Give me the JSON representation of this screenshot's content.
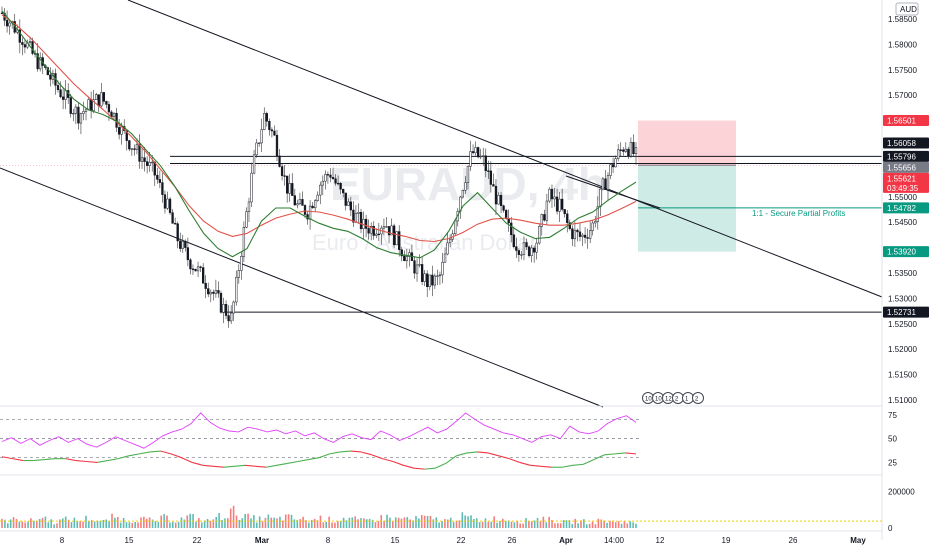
{
  "chart_data": {
    "type": "candlestick",
    "symbol_watermark": "EURAUD, 4h",
    "watermark_subtitle": "Euro / Australian Dollar",
    "currency": "AUD",
    "price_axis": {
      "ylim": [
        1.5075,
        1.5895
      ],
      "ticks": [
        "1.58500",
        "1.58000",
        "1.57500",
        "1.57000",
        "1.55000",
        "1.54500",
        "1.53500",
        "1.53000",
        "1.52500",
        "1.52000",
        "1.51500",
        "1.51000"
      ]
    },
    "time_axis": {
      "labels": [
        "8",
        "15",
        "22",
        "Mar",
        "8",
        "15",
        "22",
        "26",
        "Apr",
        "14:00",
        "12",
        "19",
        "26",
        "May"
      ],
      "bold": [
        "Mar",
        "Apr",
        "May"
      ]
    },
    "price_tags": [
      {
        "value": "1.56501",
        "price": 1.56501,
        "color": "#f23645"
      },
      {
        "value": "1.56058",
        "price": 1.56058,
        "color": "#131722"
      },
      {
        "value": "1.55796",
        "price": 1.55796,
        "color": "#131722"
      },
      {
        "value": "1.55656",
        "price": 1.55656,
        "color": "#787b86"
      },
      {
        "value": "1.55621",
        "price": 1.55621,
        "color": "#f23645",
        "sub": "03:49:35"
      },
      {
        "value": "1.54782",
        "price": 1.54782,
        "color": "#089981"
      },
      {
        "value": "1.53920",
        "price": 1.5392,
        "color": "#089981"
      },
      {
        "value": "1.52731",
        "price": 1.52731,
        "color": "#131722"
      }
    ],
    "horizontal_levels": [
      1.55796,
      1.55656,
      1.52731
    ],
    "position": {
      "entry": 1.55621,
      "stop": 1.56501,
      "target": 1.5392
    },
    "annotation": "1:1 - Secure Partial Profits",
    "annotation_level": 1.54782,
    "event_badges": [
      "10",
      "10",
      "12",
      "2",
      "1",
      "2"
    ],
    "price_series_close": [
      1.5862,
      1.5838,
      1.5809,
      1.5773,
      1.5748,
      1.5716,
      1.5688,
      1.5662,
      1.5679,
      1.5696,
      1.5671,
      1.5628,
      1.5598,
      1.5572,
      1.5544,
      1.5488,
      1.542,
      1.5379,
      1.5352,
      1.5321,
      1.5288,
      1.526,
      1.5412,
      1.5564,
      1.5661,
      1.5612,
      1.5522,
      1.5482,
      1.5471,
      1.5523,
      1.5549,
      1.5506,
      1.5471,
      1.5442,
      1.5438,
      1.5451,
      1.5418,
      1.5381,
      1.5356,
      1.5329,
      1.5339,
      1.5418,
      1.5512,
      1.5588,
      1.5572,
      1.5511,
      1.5452,
      1.5408,
      1.5392,
      1.5416,
      1.5502,
      1.5481,
      1.5432,
      1.542,
      1.5441,
      1.5521,
      1.5571,
      1.5604,
      1.558
    ],
    "sma_fast": [
      1.5866,
      1.5832,
      1.5794,
      1.5758,
      1.5722,
      1.5692,
      1.5671,
      1.5662,
      1.5648,
      1.5624,
      1.5592,
      1.5561,
      1.552,
      1.5472,
      1.5428,
      1.5398,
      1.5382,
      1.5398,
      1.5452,
      1.5478,
      1.5478,
      1.5462,
      1.5448,
      1.5438,
      1.5432,
      1.5418,
      1.54,
      1.539,
      1.5385,
      1.538,
      1.5395,
      1.5432,
      1.5482,
      1.5508,
      1.5478,
      1.5448,
      1.543,
      1.5418,
      1.542,
      1.5438,
      1.5458,
      1.547,
      1.5492,
      1.5511,
      1.5529
    ],
    "sma_slow": [
      1.5858,
      1.5838,
      1.5812,
      1.5782,
      1.5752,
      1.5722,
      1.5696,
      1.5672,
      1.5646,
      1.5618,
      1.5588,
      1.5554,
      1.552,
      1.5482,
      1.5452,
      1.5432,
      1.5422,
      1.5428,
      1.5444,
      1.5458,
      1.5466,
      1.5472,
      1.547,
      1.5464,
      1.5456,
      1.5446,
      1.5436,
      1.5428,
      1.5422,
      1.5414,
      1.5412,
      1.5418,
      1.543,
      1.5446,
      1.5456,
      1.5458,
      1.5454,
      1.5448,
      1.5444,
      1.5444,
      1.5448,
      1.5454,
      1.5464,
      1.5477,
      1.5491
    ],
    "rsi": {
      "ylim": [
        15,
        80
      ],
      "ticks": [
        "75",
        "50",
        "25"
      ],
      "levels": [
        70,
        50,
        30
      ],
      "values": [
        47,
        51,
        45,
        50,
        43,
        48,
        52,
        46,
        50,
        44,
        41,
        46,
        52,
        48,
        44,
        40,
        46,
        53,
        57,
        60,
        66,
        77,
        67,
        61,
        58,
        57,
        62,
        60,
        57,
        59,
        55,
        58,
        53,
        56,
        50,
        46,
        52,
        55,
        51,
        49,
        58,
        54,
        48,
        52,
        57,
        62,
        56,
        60,
        68,
        77,
        70,
        64,
        60,
        56,
        54,
        50,
        46,
        52,
        54,
        50,
        63,
        57,
        55,
        58,
        66,
        71,
        74,
        67
      ]
    },
    "rsi_ma": {
      "values": [
        31,
        29,
        27,
        27,
        28,
        29,
        29,
        27,
        26,
        25,
        27,
        29,
        32,
        34,
        36,
        37,
        34,
        30,
        25,
        22,
        21,
        20,
        21,
        22,
        21,
        20,
        22,
        24,
        26,
        28,
        30,
        34,
        36,
        37,
        36,
        33,
        29,
        26,
        22,
        19,
        18,
        19,
        24,
        32,
        35,
        36,
        35,
        32,
        29,
        25,
        22,
        21,
        20,
        20,
        22,
        23,
        28,
        33,
        34,
        35,
        34
      ]
    },
    "volume": {
      "ylim": [
        0,
        220000
      ],
      "ticks": [
        "200000",
        "0"
      ],
      "avg_level": 38000,
      "values": [
        38000,
        41000,
        52000,
        35000,
        46000,
        58000,
        31000,
        44000,
        49000,
        37000,
        55000,
        42000,
        33000,
        61000,
        47000,
        39000,
        52000,
        44000,
        36000,
        58000,
        41000,
        49000,
        63000,
        45000,
        38000,
        57000,
        72000,
        91000,
        66000,
        54000,
        47000,
        58000,
        43000,
        61000,
        52000,
        48000,
        39000,
        55000,
        46000,
        42000,
        57000,
        49000,
        38000,
        44000,
        52000,
        61000,
        47000,
        55000,
        43000,
        58000,
        51000,
        46000,
        39000,
        57000,
        64000,
        48000,
        41000,
        53000,
        45000,
        50000,
        42000,
        38000,
        47000,
        55000,
        43000,
        36000,
        30000,
        41000,
        35000,
        28000,
        45000,
        33000,
        38000,
        31000,
        26000
      ]
    }
  }
}
